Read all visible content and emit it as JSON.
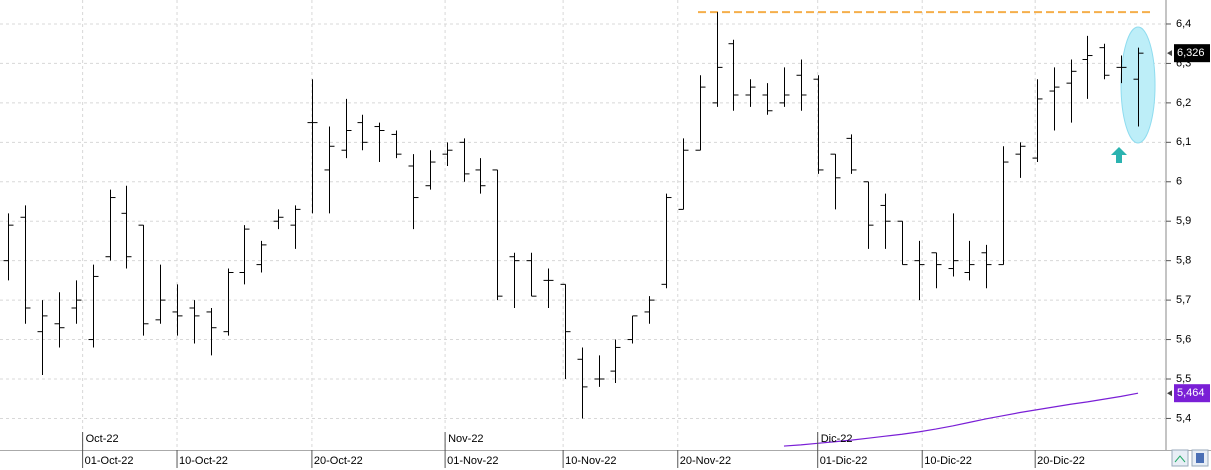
{
  "chart_data": {
    "type": "ohlc",
    "xlim": [
      -0.5,
      68.6
    ],
    "ylim": [
      5.32,
      6.4608
    ],
    "yticks": [
      {
        "value": 5.4,
        "label": "5,4"
      },
      {
        "value": 5.5,
        "label": "5,5"
      },
      {
        "value": 5.6,
        "label": "5,6"
      },
      {
        "value": 5.7,
        "label": "5,7"
      },
      {
        "value": 5.8,
        "label": "5,8"
      },
      {
        "value": 5.9,
        "label": "5,9"
      },
      6,
      {
        "value": 6.1,
        "label": "6,1"
      },
      {
        "value": 6.2,
        "label": "6,2"
      },
      {
        "value": 6.3,
        "label": "6,3"
      },
      {
        "value": 6.4,
        "label": "6,4"
      }
    ],
    "xticks": [
      {
        "value": 4.4,
        "label": "01-Oct-22"
      },
      {
        "value": 10.0,
        "label": "10-Oct-22"
      },
      {
        "value": 18.0,
        "label": "20-Oct-22"
      },
      {
        "value": 25.9,
        "label": "01-Nov-22"
      },
      {
        "value": 32.9,
        "label": "10-Nov-22"
      },
      {
        "value": 39.7,
        "label": "20-Nov-22"
      },
      {
        "value": 48.0,
        "label": "01-Dic-22"
      },
      {
        "value": 54.2,
        "label": "10-Dic-22"
      },
      {
        "value": 60.9,
        "label": "20-Dic-22"
      }
    ],
    "month_labels": [
      {
        "value": 4.4,
        "label": "Oct-22"
      },
      {
        "value": 25.9,
        "label": "Nov-22"
      },
      {
        "value": 48.0,
        "label": "Dic-22"
      }
    ],
    "grid": true,
    "color": "#000000",
    "ohlc": [
      [
        5.8,
        5.92,
        5.75,
        5.89
      ],
      [
        5.91,
        5.94,
        5.64,
        5.68
      ],
      [
        5.62,
        5.7,
        5.51,
        5.66
      ],
      [
        5.64,
        5.72,
        5.58,
        5.63
      ],
      [
        5.68,
        5.75,
        5.64,
        5.7
      ],
      [
        5.6,
        5.79,
        5.58,
        5.76
      ],
      [
        5.81,
        5.98,
        5.8,
        5.96
      ],
      [
        5.92,
        5.99,
        5.78,
        5.81
      ],
      [
        5.89,
        5.89,
        5.61,
        5.64
      ],
      [
        5.65,
        5.79,
        5.64,
        5.7
      ],
      [
        5.67,
        5.74,
        5.61,
        5.66
      ],
      [
        5.68,
        5.7,
        5.59,
        5.66
      ],
      [
        5.67,
        5.68,
        5.56,
        5.63
      ],
      [
        5.62,
        5.78,
        5.61,
        5.77
      ],
      [
        5.77,
        5.89,
        5.74,
        5.88
      ],
      [
        5.79,
        5.85,
        5.77,
        5.84
      ],
      [
        5.9,
        5.93,
        5.88,
        5.91
      ],
      [
        5.89,
        5.94,
        5.83,
        5.93
      ],
      [
        6.15,
        6.26,
        5.92,
        6.15
      ],
      [
        6.03,
        6.14,
        5.92,
        6.09
      ],
      [
        6.08,
        6.21,
        6.06,
        6.13
      ],
      [
        6.15,
        6.17,
        6.08,
        6.1
      ],
      [
        6.14,
        6.15,
        6.05,
        6.13
      ],
      [
        6.12,
        6.13,
        6.06,
        6.07
      ],
      [
        6.04,
        6.07,
        5.88,
        5.96
      ],
      [
        5.99,
        6.08,
        5.98,
        6.05
      ],
      [
        6.07,
        6.1,
        6.04,
        6.08
      ],
      [
        6.1,
        6.11,
        6.0,
        6.02
      ],
      [
        6.03,
        6.06,
        5.97,
        5.99
      ],
      [
        6.03,
        6.03,
        5.7,
        5.71
      ],
      [
        5.81,
        5.82,
        5.68,
        5.8
      ],
      [
        5.8,
        5.82,
        5.71,
        5.71
      ],
      [
        5.75,
        5.78,
        5.68,
        5.75
      ],
      [
        5.74,
        5.74,
        5.5,
        5.62
      ],
      [
        5.55,
        5.58,
        5.4,
        5.48
      ],
      [
        5.5,
        5.56,
        5.48,
        5.5
      ],
      [
        5.52,
        5.6,
        5.49,
        5.58
      ],
      [
        5.6,
        5.66,
        5.59,
        5.66
      ],
      [
        5.67,
        5.71,
        5.64,
        5.7
      ],
      [
        5.74,
        5.97,
        5.73,
        5.96
      ],
      [
        5.93,
        6.11,
        5.93,
        6.08
      ],
      [
        6.08,
        6.27,
        6.08,
        6.24
      ],
      [
        6.2,
        6.43,
        6.19,
        6.29
      ],
      [
        6.35,
        6.36,
        6.18,
        6.22
      ],
      [
        6.22,
        6.26,
        6.19,
        6.24
      ],
      [
        6.22,
        6.25,
        6.17,
        6.18
      ],
      [
        6.2,
        6.29,
        6.19,
        6.22
      ],
      [
        6.27,
        6.31,
        6.18,
        6.22
      ],
      [
        6.26,
        6.27,
        6.02,
        6.03
      ],
      [
        6.07,
        6.07,
        5.93,
        6.01
      ],
      [
        6.11,
        6.12,
        6.02,
        6.03
      ],
      [
        6.0,
        6.0,
        5.83,
        5.89
      ],
      [
        5.94,
        5.97,
        5.83,
        5.9
      ],
      [
        5.9,
        5.9,
        5.79,
        5.79
      ],
      [
        5.8,
        5.85,
        5.7,
        5.79
      ],
      [
        5.82,
        5.82,
        5.73,
        5.79
      ],
      [
        5.78,
        5.92,
        5.76,
        5.8
      ],
      [
        5.77,
        5.85,
        5.75,
        5.79
      ],
      [
        5.82,
        5.84,
        5.73,
        5.79
      ],
      [
        5.79,
        6.09,
        5.79,
        6.05
      ],
      [
        6.07,
        6.1,
        6.01,
        6.09
      ],
      [
        6.06,
        6.26,
        6.05,
        6.21
      ],
      [
        6.23,
        6.29,
        6.13,
        6.24
      ],
      [
        6.25,
        6.31,
        6.15,
        6.28
      ],
      [
        6.31,
        6.37,
        6.21,
        6.32
      ],
      [
        6.34,
        6.35,
        6.26,
        6.27
      ],
      [
        6.29,
        6.32,
        6.25,
        6.29
      ],
      [
        6.26,
        6.34,
        6.14,
        6.326
      ]
    ],
    "ma": {
      "color": "#7a1fd6",
      "values": [
        null,
        null,
        null,
        null,
        null,
        null,
        null,
        null,
        null,
        null,
        null,
        null,
        null,
        null,
        null,
        null,
        null,
        null,
        null,
        null,
        null,
        null,
        null,
        null,
        null,
        null,
        null,
        null,
        null,
        null,
        null,
        null,
        null,
        null,
        null,
        null,
        null,
        null,
        null,
        null,
        null,
        null,
        null,
        null,
        null,
        null,
        5.33,
        5.333,
        5.337,
        5.341,
        5.345,
        5.35,
        5.355,
        5.36,
        5.366,
        5.373,
        5.381,
        5.39,
        5.399,
        5.407,
        5.415,
        5.422,
        5.429,
        5.436,
        5.442,
        5.449,
        5.456,
        5.464
      ]
    },
    "last_price": {
      "value": 6.326,
      "label": "6,326"
    },
    "ma_last": {
      "value": 5.464,
      "label": "5,464"
    },
    "resistance": {
      "value": 6.43,
      "color": "#f5ae4a"
    }
  }
}
